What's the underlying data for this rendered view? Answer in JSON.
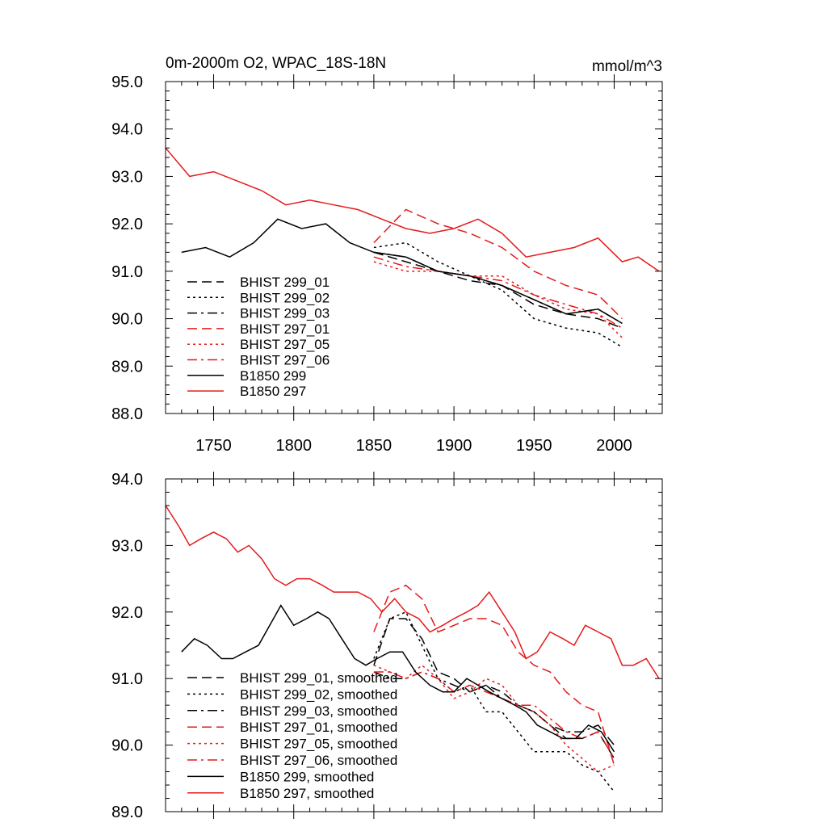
{
  "colors": {
    "black": "#000000",
    "red": "#e41a1c"
  },
  "chart_data": [
    {
      "type": "line",
      "title": "0m-2000m O2, WPAC_18S-18N",
      "units": "mmol/m^3",
      "xlim": [
        1720,
        2030
      ],
      "ylim": [
        88.0,
        95.0
      ],
      "xticks": [
        1750,
        1800,
        1850,
        1900,
        1950,
        2000
      ],
      "xtick_labels": [
        "1750",
        "1800",
        "1850",
        "1900",
        "1950",
        "2000"
      ],
      "yticks": [
        88,
        89,
        90,
        91,
        92,
        93,
        94,
        95
      ],
      "ytick_labels": [
        "88.0",
        "89.0",
        "90.0",
        "91.0",
        "92.0",
        "93.0",
        "94.0",
        "95.0"
      ],
      "legend_position": "lower-left",
      "series": [
        {
          "name": "BHIST 299_01",
          "color": "black",
          "style": "dash",
          "x": [
            1850,
            1870,
            1890,
            1910,
            1930,
            1950,
            1970,
            1990,
            2005
          ],
          "y": [
            91.4,
            91.2,
            91.0,
            90.8,
            90.7,
            90.3,
            90.1,
            90.0,
            89.8
          ]
        },
        {
          "name": "BHIST 299_02",
          "color": "black",
          "style": "dot",
          "x": [
            1850,
            1870,
            1890,
            1910,
            1930,
            1950,
            1970,
            1990,
            2005
          ],
          "y": [
            91.5,
            91.6,
            91.2,
            90.9,
            90.6,
            90.0,
            89.8,
            89.7,
            89.4
          ]
        },
        {
          "name": "BHIST 299_03",
          "color": "black",
          "style": "dashdot",
          "x": [
            1850,
            1870,
            1890,
            1910,
            1930,
            1950,
            1970,
            1990,
            2005
          ],
          "y": [
            91.4,
            91.3,
            91.0,
            90.9,
            90.7,
            90.4,
            90.1,
            90.2,
            89.9
          ]
        },
        {
          "name": "BHIST 297_01",
          "color": "red",
          "style": "dash",
          "x": [
            1850,
            1870,
            1890,
            1910,
            1930,
            1950,
            1970,
            1990,
            2005
          ],
          "y": [
            91.6,
            92.3,
            92.0,
            91.8,
            91.5,
            91.0,
            90.7,
            90.5,
            90.0
          ]
        },
        {
          "name": "BHIST 297_05",
          "color": "red",
          "style": "dot",
          "x": [
            1850,
            1870,
            1890,
            1910,
            1930,
            1950,
            1970,
            1990,
            2005
          ],
          "y": [
            91.2,
            91.0,
            91.0,
            90.9,
            90.9,
            90.5,
            90.2,
            90.1,
            89.6
          ]
        },
        {
          "name": "BHIST 297_06",
          "color": "red",
          "style": "dashdot",
          "x": [
            1850,
            1870,
            1890,
            1910,
            1930,
            1950,
            1970,
            1990,
            2005
          ],
          "y": [
            91.3,
            91.1,
            91.0,
            90.9,
            90.8,
            90.5,
            90.3,
            90.1,
            89.8
          ]
        },
        {
          "name": "B1850 299",
          "color": "black",
          "style": "solid",
          "x": [
            1730,
            1745,
            1760,
            1775,
            1790,
            1805,
            1820,
            1835,
            1850,
            1870,
            1890,
            1910,
            1930,
            1950,
            1970,
            1990,
            2005
          ],
          "y": [
            91.4,
            91.5,
            91.3,
            91.6,
            92.1,
            91.9,
            92.0,
            91.6,
            91.4,
            91.3,
            91.0,
            90.9,
            90.7,
            90.4,
            90.1,
            90.2,
            89.9
          ]
        },
        {
          "name": "B1850 297",
          "color": "red",
          "style": "solid",
          "x": [
            1720,
            1735,
            1750,
            1765,
            1780,
            1795,
            1810,
            1825,
            1840,
            1855,
            1870,
            1885,
            1900,
            1915,
            1930,
            1945,
            1960,
            1975,
            1990,
            2005,
            2015,
            2028
          ],
          "y": [
            93.6,
            93.0,
            93.1,
            92.9,
            92.7,
            92.4,
            92.5,
            92.4,
            92.3,
            92.1,
            91.9,
            91.8,
            91.9,
            92.1,
            91.8,
            91.3,
            91.4,
            91.5,
            91.7,
            91.2,
            91.3,
            91.0
          ]
        }
      ]
    },
    {
      "type": "line",
      "title": "",
      "xlim": [
        1720,
        2030
      ],
      "ylim": [
        89.0,
        94.0
      ],
      "yticks": [
        89,
        90,
        91,
        92,
        93,
        94
      ],
      "ytick_labels": [
        "89.0",
        "90.0",
        "91.0",
        "92.0",
        "93.0",
        "94.0"
      ],
      "xticks": [
        1750,
        1800,
        1850,
        1900,
        1950,
        2000
      ],
      "legend_position": "lower-left",
      "series": [
        {
          "name": "BHIST 299_01, smoothed",
          "color": "black",
          "style": "dash",
          "x": [
            1850,
            1860,
            1870,
            1880,
            1890,
            1900,
            1910,
            1920,
            1930,
            1940,
            1950,
            1960,
            1970,
            1980,
            1990,
            2000
          ],
          "y": [
            91.2,
            91.9,
            91.9,
            91.6,
            91.1,
            91.0,
            90.8,
            90.9,
            90.8,
            90.6,
            90.5,
            90.3,
            90.1,
            90.1,
            90.2,
            89.8
          ]
        },
        {
          "name": "BHIST 299_02, smoothed",
          "color": "black",
          "style": "dot",
          "x": [
            1850,
            1860,
            1870,
            1880,
            1890,
            1900,
            1910,
            1920,
            1930,
            1940,
            1950,
            1960,
            1970,
            1980,
            1990,
            2000
          ],
          "y": [
            91.3,
            91.9,
            92.0,
            91.5,
            91.0,
            90.8,
            90.9,
            90.5,
            90.5,
            90.2,
            89.9,
            89.9,
            89.9,
            89.7,
            89.6,
            89.3
          ]
        },
        {
          "name": "BHIST 299_03, smoothed",
          "color": "black",
          "style": "dashdot",
          "x": [
            1850,
            1860,
            1870,
            1880,
            1890,
            1900,
            1910,
            1920,
            1930,
            1940,
            1950,
            1960,
            1970,
            1980,
            1990,
            2000
          ],
          "y": [
            91.1,
            91.0,
            91.0,
            91.1,
            91.0,
            90.9,
            90.8,
            90.9,
            90.7,
            90.6,
            90.5,
            90.3,
            90.2,
            90.2,
            90.3,
            90.0
          ]
        },
        {
          "name": "BHIST 297_01, smoothed",
          "color": "red",
          "style": "dash",
          "x": [
            1850,
            1860,
            1870,
            1880,
            1890,
            1900,
            1910,
            1920,
            1930,
            1940,
            1950,
            1960,
            1970,
            1980,
            1990,
            2000
          ],
          "y": [
            91.7,
            92.3,
            92.4,
            92.2,
            91.7,
            91.8,
            91.9,
            91.9,
            91.8,
            91.4,
            91.2,
            91.1,
            90.8,
            90.6,
            90.5,
            89.7
          ]
        },
        {
          "name": "BHIST 297_05, smoothed",
          "color": "red",
          "style": "dot",
          "x": [
            1850,
            1860,
            1870,
            1880,
            1890,
            1900,
            1910,
            1920,
            1930,
            1940,
            1950,
            1960,
            1970,
            1980,
            1990,
            2000
          ],
          "y": [
            91.2,
            91.1,
            91.0,
            91.2,
            91.0,
            90.7,
            90.8,
            91.0,
            90.9,
            90.6,
            90.5,
            90.3,
            90.0,
            89.8,
            89.6,
            89.7
          ]
        },
        {
          "name": "BHIST 297_06, smoothed",
          "color": "red",
          "style": "dashdot",
          "x": [
            1850,
            1860,
            1870,
            1880,
            1890,
            1900,
            1910,
            1920,
            1930,
            1940,
            1950,
            1960,
            1970,
            1980,
            1990,
            2000
          ],
          "y": [
            91.1,
            91.1,
            91.0,
            91.1,
            91.0,
            90.8,
            90.9,
            90.8,
            90.7,
            90.6,
            90.6,
            90.4,
            90.2,
            90.1,
            90.2,
            89.8
          ]
        },
        {
          "name": "B1850 299, smoothed",
          "color": "black",
          "style": "solid",
          "x": [
            1730,
            1738,
            1746,
            1755,
            1762,
            1770,
            1778,
            1785,
            1792,
            1800,
            1808,
            1815,
            1822,
            1830,
            1838,
            1845,
            1852,
            1860,
            1868,
            1876,
            1885,
            1893,
            1900,
            1908,
            1915,
            1922,
            1930,
            1938,
            1945,
            1952,
            1960,
            1968,
            1976,
            1984,
            1992,
            2000
          ],
          "y": [
            91.4,
            91.6,
            91.5,
            91.3,
            91.3,
            91.4,
            91.5,
            91.8,
            92.1,
            91.8,
            91.9,
            92.0,
            91.9,
            91.6,
            91.3,
            91.2,
            91.3,
            91.4,
            91.4,
            91.1,
            90.9,
            90.8,
            90.8,
            91.0,
            90.9,
            90.8,
            90.7,
            90.6,
            90.5,
            90.3,
            90.2,
            90.1,
            90.1,
            90.3,
            90.2,
            89.9
          ]
        },
        {
          "name": "B1850 297, smoothed",
          "color": "red",
          "style": "solid",
          "x": [
            1720,
            1728,
            1735,
            1742,
            1750,
            1758,
            1765,
            1772,
            1780,
            1788,
            1795,
            1802,
            1810,
            1818,
            1825,
            1832,
            1840,
            1848,
            1855,
            1863,
            1870,
            1878,
            1885,
            1893,
            1900,
            1908,
            1915,
            1922,
            1930,
            1938,
            1945,
            1952,
            1960,
            1968,
            1975,
            1982,
            1990,
            1998,
            2005,
            2012,
            2020,
            2028
          ],
          "y": [
            93.6,
            93.3,
            93.0,
            93.1,
            93.2,
            93.1,
            92.9,
            93.0,
            92.8,
            92.5,
            92.4,
            92.5,
            92.5,
            92.4,
            92.3,
            92.3,
            92.3,
            92.2,
            92.0,
            92.2,
            92.0,
            91.9,
            91.7,
            91.8,
            91.9,
            92.0,
            92.1,
            92.3,
            92.0,
            91.7,
            91.3,
            91.4,
            91.7,
            91.6,
            91.5,
            91.8,
            91.7,
            91.6,
            91.2,
            91.2,
            91.3,
            91.0
          ]
        }
      ]
    }
  ]
}
